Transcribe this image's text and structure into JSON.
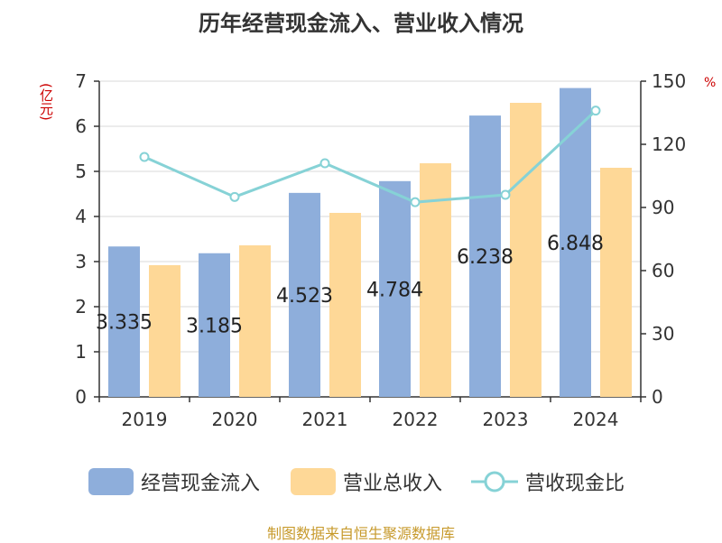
{
  "chart_data": {
    "type": "bar",
    "title": "历年经营现金流入、营业收入情况",
    "categories": [
      "2019",
      "2020",
      "2021",
      "2022",
      "2023",
      "2024"
    ],
    "series": [
      {
        "name": "经营现金流入",
        "type": "bar",
        "axis": "left",
        "color": "#8eaedb",
        "values": [
          3.335,
          3.185,
          4.523,
          4.784,
          6.238,
          6.848
        ]
      },
      {
        "name": "营业总收入",
        "type": "bar",
        "axis": "left",
        "color": "#fed897",
        "values": [
          2.92,
          3.36,
          4.08,
          5.18,
          6.52,
          5.08
        ]
      },
      {
        "name": "营收现金比",
        "type": "line",
        "axis": "right",
        "color": "#86d2d6",
        "values": [
          114,
          95,
          111,
          92.5,
          96,
          136
        ]
      }
    ],
    "data_labels": [
      "3.335",
      "3.185",
      "4.523",
      "4.784",
      "6.238",
      "6.848"
    ],
    "left_axis": {
      "unit": "(亿元)",
      "ylim": [
        0,
        7
      ],
      "ticks": [
        "0",
        "1",
        "2",
        "3",
        "4",
        "5",
        "6",
        "7"
      ]
    },
    "right_axis": {
      "unit": "%",
      "ylim": [
        0,
        150
      ],
      "ticks": [
        "0",
        "30",
        "60",
        "90",
        "120",
        "150"
      ]
    },
    "legend": [
      "经营现金流入",
      "营业总收入",
      "营收现金比"
    ],
    "legend_position": "bottom",
    "grid": true,
    "source": "制图数据来自恒生聚源数据库"
  }
}
